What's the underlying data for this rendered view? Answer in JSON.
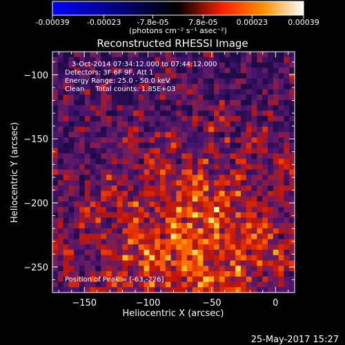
{
  "colorbar": {
    "tick_labels": [
      "-0.00039",
      "-0.00023",
      "-7.8e-05",
      "7.8e-05",
      "0.00023",
      "0.00039"
    ],
    "tick_values": [
      -0.00039,
      -0.00023,
      -7.8e-05,
      7.8e-05,
      0.00023,
      0.00039
    ],
    "range": [
      -0.00039,
      0.00039
    ],
    "units_label": "(photons cm⁻² s⁻¹ asec⁻²)",
    "colors": [
      "#0000ff",
      "#000000",
      "#ff2000",
      "#ff9000",
      "#ffffff"
    ]
  },
  "chart_data": {
    "type": "heatmap",
    "title": "Reconstructed RHESSI Image",
    "xlabel": "Heliocentric X (arcsec)",
    "ylabel": "Heliocentric Y (arcsec)",
    "xlim": [
      -175,
      15
    ],
    "ylim": [
      -270,
      -82
    ],
    "x_ticks": [
      -150,
      -100,
      -50,
      0
    ],
    "y_ticks": [
      -100,
      -150,
      -200,
      -250
    ],
    "x_tick_labels": [
      "−150",
      "−100",
      "−50",
      "0"
    ],
    "y_tick_labels": [
      "−100",
      "−150",
      "−200",
      "−250"
    ],
    "annotations": [
      "3-Oct-2014 07:34:12.000 to 07:44:12.000",
      "Detectors: 3F 6F 9F, Att 1",
      "Energy Range: 25.0 - 50.0 keV",
      "Clean     Total counts: 1.85E+03"
    ],
    "peak_text": "Position of Peak = [-63,-226]",
    "peak": [
      -63,
      -226
    ],
    "grid": false
  },
  "footer": {
    "timestamp": "25-May-2017 15:27"
  }
}
